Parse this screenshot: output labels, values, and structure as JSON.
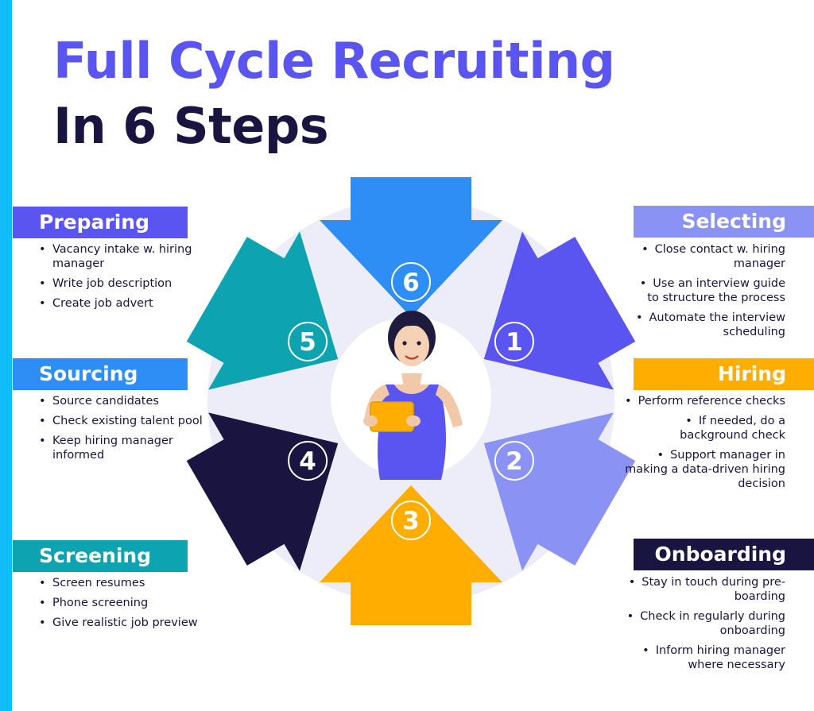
{
  "title": {
    "line1": "Full Cycle Recruiting",
    "line2": "In 6 Steps"
  },
  "colors": {
    "accent_bar": "#12bcf8",
    "title_primary": "#5a55f0",
    "title_dark": "#1a1440",
    "ring": "#ededf9"
  },
  "steps": [
    {
      "number": "1",
      "name": "Preparing",
      "color": "#5a55f0",
      "bullets": [
        "Vacancy intake w. hiring manager",
        "Write job description",
        "Create job advert"
      ]
    },
    {
      "number": "2",
      "name": "Selecting",
      "color": "#8a92f4",
      "bullets": [
        "Close contact w. hiring manager",
        "Use an interview guide to structure the process",
        "Automate the interview scheduling"
      ]
    },
    {
      "number": "3",
      "name": "Hiring",
      "color": "#ffae00",
      "bullets": [
        "Perform reference checks",
        "If needed, do a background check",
        "Support manager in making a data-driven hiring decision"
      ]
    },
    {
      "number": "4",
      "name": "Onboarding",
      "color": "#1a1440",
      "bullets": [
        "Stay in touch during pre-boarding",
        "Check in regularly during onboarding",
        "Inform hiring manager where necessary"
      ]
    },
    {
      "number": "5",
      "name": "Screening",
      "color": "#0da3b0",
      "bullets": [
        "Screen resumes",
        "Phone screening",
        "Give realistic job preview"
      ]
    },
    {
      "number": "6",
      "name": "Sourcing",
      "color": "#2f8ef5",
      "bullets": [
        "Source candidates",
        "Check existing talent pool",
        "Keep hiring manager informed"
      ]
    }
  ]
}
